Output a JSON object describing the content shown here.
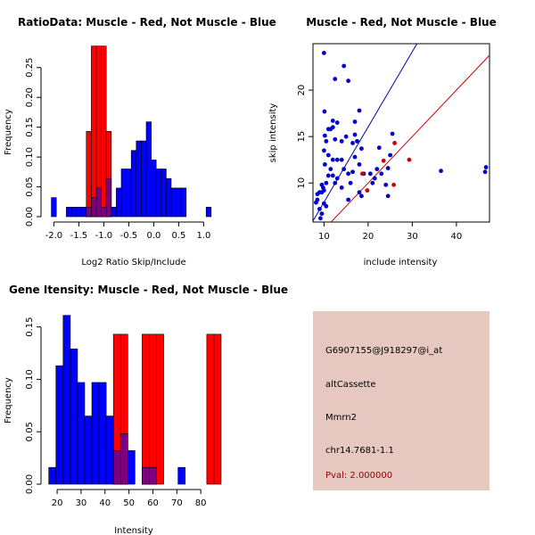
{
  "colors": {
    "muscle": "#ff0000",
    "not_muscle": "#0000ff",
    "overlap": "#7f007f",
    "info_panel": "#e6c8c0",
    "pval": "#a00000"
  },
  "chart_data": [
    {
      "id": "ratio",
      "type": "bar",
      "title": "RatioData: Muscle - Red, Not Muscle - Blue",
      "xlabel": "Log2 Ratio Skip/Include",
      "ylabel": "Frequency",
      "xlim": [
        -2.15,
        1.35
      ],
      "ylim": [
        0,
        0.29
      ],
      "xticks": [
        -2.0,
        -1.5,
        -1.0,
        -0.5,
        0.0,
        0.5,
        1.0
      ],
      "xtick_labels": [
        "-2.0",
        "-1.5",
        "-1.0",
        "-0.5",
        "0.0",
        "0.5",
        "1.0"
      ],
      "yticks": [
        0.0,
        0.05,
        0.1,
        0.15,
        0.2,
        0.25
      ],
      "ytick_labels": [
        "0.00",
        "0.05",
        "0.10",
        "0.15",
        "0.20",
        "0.25"
      ],
      "bin_width": 0.1,
      "series": [
        {
          "name": "Not Muscle",
          "color": "#0000ff",
          "bins": [
            {
              "x0": -2.05,
              "v": 0.032
            },
            {
              "x0": -1.95,
              "v": 0.0
            },
            {
              "x0": -1.85,
              "v": 0.0
            },
            {
              "x0": -1.75,
              "v": 0.016
            },
            {
              "x0": -1.65,
              "v": 0.016
            },
            {
              "x0": -1.55,
              "v": 0.016
            },
            {
              "x0": -1.45,
              "v": 0.016
            },
            {
              "x0": -1.35,
              "v": 0.016
            },
            {
              "x0": -1.25,
              "v": 0.032
            },
            {
              "x0": -1.15,
              "v": 0.048
            },
            {
              "x0": -1.05,
              "v": 0.016
            },
            {
              "x0": -0.95,
              "v": 0.064
            },
            {
              "x0": -0.85,
              "v": 0.016
            },
            {
              "x0": -0.75,
              "v": 0.048
            },
            {
              "x0": -0.65,
              "v": 0.08
            },
            {
              "x0": -0.55,
              "v": 0.08
            },
            {
              "x0": -0.45,
              "v": 0.111
            },
            {
              "x0": -0.35,
              "v": 0.127
            },
            {
              "x0": -0.25,
              "v": 0.127
            },
            {
              "x0": -0.15,
              "v": 0.159
            },
            {
              "x0": -0.05,
              "v": 0.095
            },
            {
              "x0": 0.05,
              "v": 0.08
            },
            {
              "x0": 0.15,
              "v": 0.08
            },
            {
              "x0": 0.25,
              "v": 0.064
            },
            {
              "x0": 0.35,
              "v": 0.048
            },
            {
              "x0": 0.45,
              "v": 0.048
            },
            {
              "x0": 0.55,
              "v": 0.048
            },
            {
              "x0": 0.65,
              "v": 0.0
            },
            {
              "x0": 0.75,
              "v": 0.0
            },
            {
              "x0": 0.85,
              "v": 0.0
            },
            {
              "x0": 0.95,
              "v": 0.0
            },
            {
              "x0": 1.05,
              "v": 0.016
            }
          ]
        },
        {
          "name": "Muscle",
          "color": "#ff0000",
          "bins": [
            {
              "x0": -1.35,
              "v": 0.143
            },
            {
              "x0": -1.25,
              "v": 0.286
            },
            {
              "x0": -1.15,
              "v": 0.286
            },
            {
              "x0": -1.05,
              "v": 0.286
            },
            {
              "x0": -0.95,
              "v": 0.143
            }
          ]
        }
      ]
    },
    {
      "id": "scatter",
      "type": "scatter",
      "title": "Muscle - Red, Not Muscle - Blue",
      "xlabel": "include intensity",
      "ylabel": "skip intensity",
      "xlim": [
        7.5,
        47.5
      ],
      "ylim": [
        5.8,
        25.0
      ],
      "xticks": [
        10,
        20,
        30,
        40
      ],
      "yticks": [
        10,
        15,
        20
      ],
      "lines": [
        {
          "name": "blue-fit",
          "color": "#0000aa",
          "slope": 0.81,
          "intercept": -0.16
        },
        {
          "name": "red-fit",
          "color": "#cc0000",
          "slope": 0.5,
          "intercept": 0.0
        }
      ],
      "series": [
        {
          "name": "Not Muscle",
          "color": "#0000cc",
          "points": [
            [
              10.0,
              24.0
            ],
            [
              12.5,
              21.2
            ],
            [
              14.5,
              22.6
            ],
            [
              15.5,
              21.0
            ],
            [
              10.1,
              17.7
            ],
            [
              12.0,
              16.0
            ],
            [
              11.5,
              15.8
            ],
            [
              12.0,
              16.7
            ],
            [
              13.0,
              16.5
            ],
            [
              18.0,
              17.8
            ],
            [
              17.0,
              16.6
            ],
            [
              11.0,
              15.8
            ],
            [
              10.2,
              15.1
            ],
            [
              10.5,
              14.5
            ],
            [
              12.5,
              14.7
            ],
            [
              14.0,
              14.5
            ],
            [
              16.5,
              14.3
            ],
            [
              17.5,
              14.5
            ],
            [
              15.0,
              15.0
            ],
            [
              17.0,
              15.2
            ],
            [
              18.5,
              13.7
            ],
            [
              10.0,
              13.5
            ],
            [
              11.0,
              13.0
            ],
            [
              12.0,
              12.5
            ],
            [
              13.0,
              12.5
            ],
            [
              14.0,
              12.5
            ],
            [
              17.0,
              12.8
            ],
            [
              18.0,
              12.0
            ],
            [
              10.2,
              12.0
            ],
            [
              11.5,
              11.5
            ],
            [
              14.5,
              11.5
            ],
            [
              15.5,
              11.0
            ],
            [
              16.5,
              11.2
            ],
            [
              12.0,
              10.8
            ],
            [
              13.0,
              10.5
            ],
            [
              10.5,
              10.0
            ],
            [
              11.0,
              10.8
            ],
            [
              12.5,
              10.0
            ],
            [
              14.0,
              9.5
            ],
            [
              16.0,
              10.0
            ],
            [
              19.0,
              11.0
            ],
            [
              20.5,
              11.0
            ],
            [
              22.0,
              11.5
            ],
            [
              21.5,
              10.5
            ],
            [
              23.0,
              11.0
            ],
            [
              24.5,
              11.6
            ],
            [
              22.5,
              13.8
            ],
            [
              25.5,
              15.3
            ],
            [
              25.0,
              13.0
            ],
            [
              9.5,
              9.8
            ],
            [
              9.8,
              9.5
            ],
            [
              10.0,
              9.2
            ],
            [
              9.5,
              9.0
            ],
            [
              9.0,
              9.0
            ],
            [
              8.5,
              8.8
            ],
            [
              8.5,
              8.2
            ],
            [
              8.2,
              7.9
            ],
            [
              9.0,
              7.2
            ],
            [
              10.0,
              7.8
            ],
            [
              10.5,
              7.5
            ],
            [
              9.5,
              6.7
            ],
            [
              9.2,
              6.2
            ],
            [
              18.0,
              9.0
            ],
            [
              18.5,
              8.6
            ],
            [
              21.0,
              10.0
            ],
            [
              24.0,
              9.8
            ],
            [
              24.5,
              8.6
            ],
            [
              15.5,
              8.2
            ],
            [
              36.5,
              11.3
            ],
            [
              46.5,
              11.2
            ],
            [
              46.7,
              11.7
            ]
          ]
        },
        {
          "name": "Muscle",
          "color": "#cc0000",
          "points": [
            [
              18.7,
              11.0
            ],
            [
              19.8,
              9.2
            ],
            [
              23.5,
              12.4
            ],
            [
              25.8,
              9.8
            ],
            [
              29.3,
              12.5
            ],
            [
              26.0,
              14.3
            ]
          ]
        }
      ]
    },
    {
      "id": "intensity",
      "type": "bar",
      "title": "Gene Itensity: Muscle - Red, Not Muscle - Blue",
      "xlabel": "Intensity",
      "ylabel": "Frequency",
      "xlim": [
        15.5,
        88.5
      ],
      "ylim": [
        0,
        0.165
      ],
      "xticks": [
        20,
        30,
        40,
        50,
        60,
        70,
        80
      ],
      "yticks": [
        0.0,
        0.05,
        0.1,
        0.15
      ],
      "ytick_labels": [
        "0.00",
        "0.05",
        "0.10",
        "0.15"
      ],
      "bin_width": 3.0,
      "series": [
        {
          "name": "Not Muscle",
          "color": "#0000ff",
          "bins": [
            {
              "x0": 16.5,
              "v": 0.016
            },
            {
              "x0": 19.5,
              "v": 0.113
            },
            {
              "x0": 22.5,
              "v": 0.161
            },
            {
              "x0": 25.5,
              "v": 0.129
            },
            {
              "x0": 28.5,
              "v": 0.097
            },
            {
              "x0": 31.5,
              "v": 0.065
            },
            {
              "x0": 34.5,
              "v": 0.097
            },
            {
              "x0": 37.5,
              "v": 0.097
            },
            {
              "x0": 40.5,
              "v": 0.065
            },
            {
              "x0": 43.5,
              "v": 0.032
            },
            {
              "x0": 46.5,
              "v": 0.048
            },
            {
              "x0": 49.5,
              "v": 0.032
            },
            {
              "x0": 52.5,
              "v": 0.0
            },
            {
              "x0": 55.5,
              "v": 0.016
            },
            {
              "x0": 58.5,
              "v": 0.016
            },
            {
              "x0": 61.5,
              "v": 0.0
            },
            {
              "x0": 64.5,
              "v": 0.0
            },
            {
              "x0": 67.5,
              "v": 0.0
            },
            {
              "x0": 70.5,
              "v": 0.016
            }
          ]
        },
        {
          "name": "Muscle",
          "color": "#ff0000",
          "bins": [
            {
              "x0": 43.5,
              "v": 0.143
            },
            {
              "x0": 46.5,
              "v": 0.143
            },
            {
              "x0": 55.5,
              "v": 0.143
            },
            {
              "x0": 58.5,
              "v": 0.143
            },
            {
              "x0": 61.5,
              "v": 0.143
            },
            {
              "x0": 82.5,
              "v": 0.143
            },
            {
              "x0": 85.5,
              "v": 0.143
            }
          ]
        }
      ]
    }
  ],
  "info": {
    "probe": "G6907155@J918297@i_at",
    "event_type": "altCassette",
    "gene": "Mmrn2",
    "location": "chr14.7681-1.1",
    "pval": "Pval: 2.000000"
  }
}
